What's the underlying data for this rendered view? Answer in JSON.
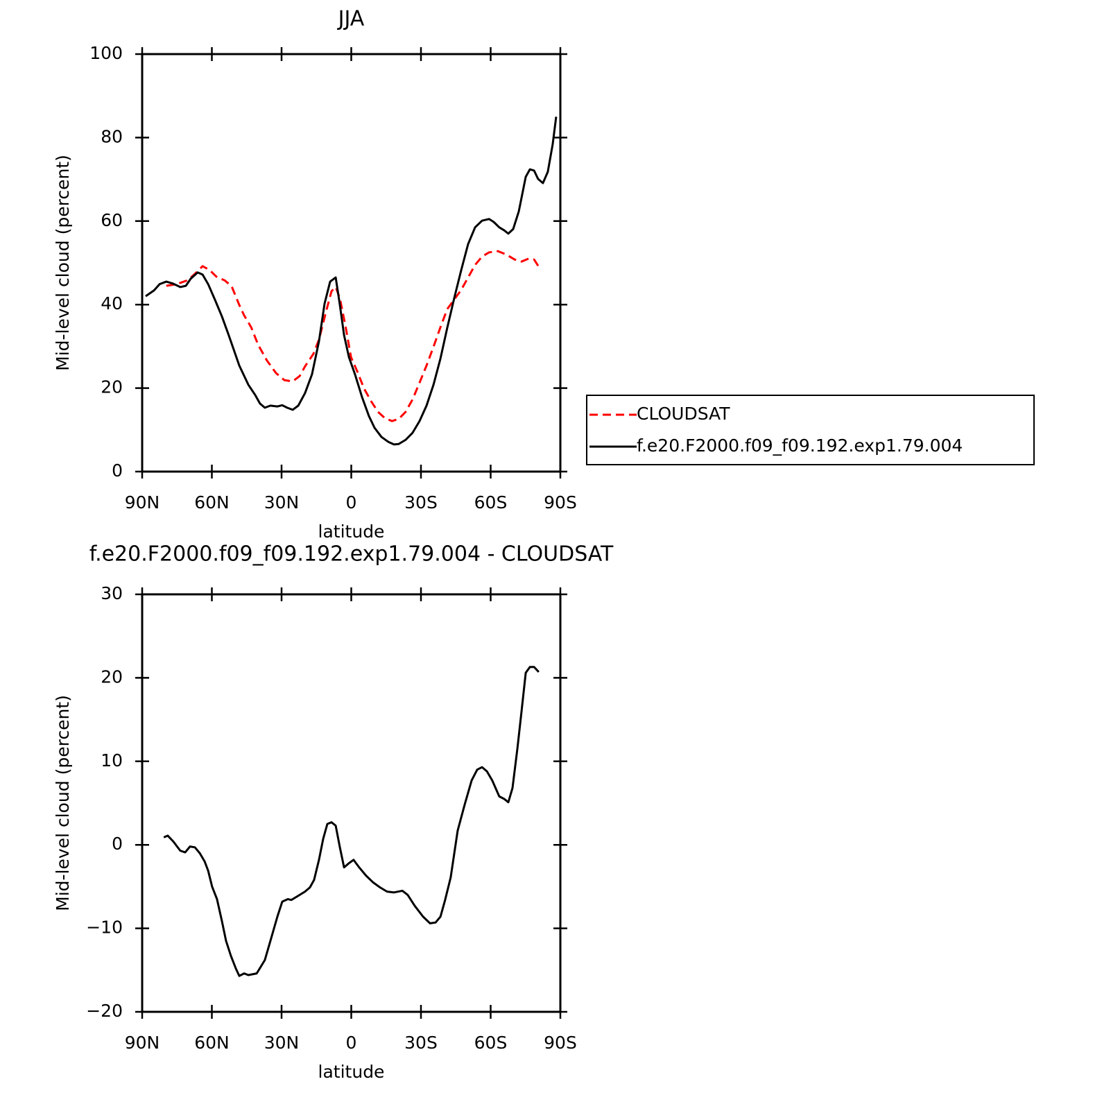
{
  "chart_data": [
    {
      "type": "line",
      "title": "JJA",
      "y_label": "Mid-level cloud (percent)",
      "x_label": "latitude",
      "xlim": [
        90,
        -90
      ],
      "xticks": [
        {
          "value": 90,
          "label": "90N"
        },
        {
          "value": 60,
          "label": "60N"
        },
        {
          "value": 30,
          "label": "30N"
        },
        0,
        {
          "value": -30,
          "label": "30S"
        },
        {
          "value": -60,
          "label": "60S"
        },
        {
          "value": -90,
          "label": "90S"
        }
      ],
      "ylim": [
        0,
        100
      ],
      "yticks": [
        0,
        20,
        40,
        60,
        80,
        100
      ],
      "legend": "right",
      "series": [
        {
          "name": "CLOUDSAT",
          "color": "#ff0000",
          "dash": true,
          "x": [
            79.6,
            75.1,
            70.6,
            67.6,
            64.0,
            61.0,
            58.1,
            54.5,
            51.5,
            48.2,
            46.1,
            43.1,
            40.1,
            36.3,
            32.4,
            28.8,
            25.2,
            22.2,
            19.9,
            16.3,
            13.9,
            10.9,
            8.5,
            6.7,
            4.9,
            2.5,
            0.1,
            -2.5,
            -5.5,
            -8.5,
            -11.5,
            -14.5,
            -17.5,
            -20.4,
            -23.4,
            -26.4,
            -29.4,
            -32.4,
            -35.4,
            -38.4,
            -41.3,
            -44.3,
            -47.3,
            -50.3,
            -53.3,
            -56.3,
            -59.3,
            -63.1,
            -66.7,
            -70.3,
            -73.3,
            -76.3,
            -78.7,
            -81.0
          ],
          "values": [
            44.5,
            44.9,
            45.8,
            47.2,
            49.2,
            48.3,
            46.7,
            45.8,
            44.4,
            39.9,
            37.4,
            34.6,
            30.4,
            26.6,
            23.6,
            21.9,
            21.6,
            22.9,
            25.2,
            28.2,
            31.6,
            38.2,
            43.2,
            44.2,
            41.5,
            34.9,
            27.4,
            24.1,
            19.9,
            16.9,
            14.3,
            12.8,
            12.1,
            12.6,
            14.3,
            17.3,
            21.3,
            25.4,
            29.9,
            34.6,
            38.9,
            41.2,
            43.5,
            46.5,
            49.5,
            51.5,
            52.5,
            52.8,
            52.0,
            50.8,
            50.3,
            51.0,
            50.8,
            48.8
          ]
        },
        {
          "name": "f.e20.F2000.f09_f09.192.exp1.79.004",
          "color": "#000000",
          "dash": false,
          "x": [
            88.5,
            84.9,
            82.5,
            79.6,
            76.6,
            73.6,
            71.2,
            69.1,
            66.1,
            64.0,
            61.6,
            58.7,
            55.7,
            52.7,
            48.2,
            44.3,
            41.3,
            39.3,
            37.2,
            34.8,
            31.8,
            29.7,
            27.6,
            25.2,
            22.8,
            19.9,
            16.9,
            13.9,
            11.5,
            9.1,
            6.7,
            4.9,
            3.1,
            1.0,
            -1.6,
            -4.6,
            -7.6,
            -10.0,
            -13.0,
            -16.0,
            -18.4,
            -20.4,
            -23.4,
            -26.4,
            -29.4,
            -32.4,
            -35.4,
            -38.4,
            -41.3,
            -44.3,
            -47.3,
            -50.3,
            -53.3,
            -56.3,
            -59.3,
            -61.3,
            -63.7,
            -65.8,
            -67.6,
            -69.7,
            -72.1,
            -73.3,
            -75.1,
            -76.9,
            -78.7,
            -80.4,
            -82.5,
            -84.6,
            -86.7,
            -88.2
          ],
          "values": [
            42.0,
            43.4,
            44.9,
            45.5,
            45.0,
            44.2,
            44.5,
            46.2,
            47.7,
            47.2,
            44.9,
            41.2,
            37.2,
            32.6,
            25.4,
            20.8,
            18.3,
            16.3,
            15.3,
            15.8,
            15.6,
            15.9,
            15.3,
            14.8,
            15.8,
            18.8,
            23.3,
            31.2,
            40.2,
            45.5,
            46.5,
            39.9,
            32.7,
            27.4,
            23.3,
            17.9,
            13.3,
            10.5,
            8.3,
            7.1,
            6.5,
            6.6,
            7.6,
            9.3,
            12.1,
            15.8,
            20.8,
            27.1,
            34.4,
            41.5,
            48.2,
            54.5,
            58.5,
            60.1,
            60.5,
            59.8,
            58.5,
            57.8,
            57.0,
            58.1,
            62.3,
            65.6,
            70.6,
            72.4,
            72.1,
            70.1,
            69.1,
            71.8,
            78.4,
            85.0
          ]
        }
      ]
    },
    {
      "type": "line",
      "title": "f.e20.F2000.f09_f09.192.exp1.79.004 - CLOUDSAT",
      "y_label": "Mid-level cloud (percent)",
      "x_label": "latitude",
      "xlim": [
        90,
        -90
      ],
      "xticks": [
        {
          "value": 90,
          "label": "90N"
        },
        {
          "value": 60,
          "label": "60N"
        },
        {
          "value": 30,
          "label": "30N"
        },
        0,
        {
          "value": -30,
          "label": "30S"
        },
        {
          "value": -60,
          "label": "60S"
        },
        {
          "value": -90,
          "label": "90S"
        }
      ],
      "ylim": [
        -20,
        30
      ],
      "yticks": [
        {
          "value": -20,
          "label": "−20"
        },
        {
          "value": -10,
          "label": "−10"
        },
        0,
        10,
        20,
        30
      ],
      "series": [
        {
          "color": "#000000",
          "dash": false,
          "x": [
            80.7,
            79.0,
            76.6,
            73.6,
            71.5,
            69.4,
            67.3,
            65.2,
            63.1,
            61.6,
            59.9,
            57.8,
            55.7,
            53.9,
            51.8,
            49.7,
            48.2,
            46.1,
            44.3,
            40.7,
            37.2,
            34.8,
            31.8,
            29.7,
            27.3,
            25.8,
            22.8,
            19.9,
            17.8,
            16.0,
            13.9,
            12.1,
            10.3,
            8.5,
            6.7,
            4.9,
            3.1,
            1.0,
            -1.0,
            -3.4,
            -6.4,
            -9.4,
            -12.4,
            -15.4,
            -18.4,
            -22.0,
            -24.3,
            -27.3,
            -30.9,
            -33.9,
            -36.3,
            -38.4,
            -40.4,
            -42.8,
            -45.8,
            -48.8,
            -51.8,
            -54.2,
            -56.3,
            -58.4,
            -60.7,
            -63.7,
            -65.8,
            -67.6,
            -69.4,
            -71.5,
            -73.3,
            -75.1,
            -76.9,
            -78.7,
            -80.7
          ],
          "values": [
            0.9,
            1.1,
            0.4,
            -0.7,
            -0.9,
            -0.2,
            -0.3,
            -1.0,
            -2.0,
            -3.1,
            -5.0,
            -6.5,
            -9.1,
            -11.5,
            -13.3,
            -14.8,
            -15.7,
            -15.4,
            -15.6,
            -15.4,
            -13.8,
            -11.5,
            -8.6,
            -6.8,
            -6.5,
            -6.6,
            -6.1,
            -5.6,
            -5.1,
            -4.2,
            -1.8,
            0.7,
            2.5,
            2.7,
            2.3,
            -0.3,
            -2.7,
            -2.2,
            -1.8,
            -2.7,
            -3.7,
            -4.5,
            -5.1,
            -5.6,
            -5.7,
            -5.5,
            -6.0,
            -7.3,
            -8.6,
            -9.4,
            -9.3,
            -8.6,
            -6.6,
            -3.9,
            1.7,
            4.8,
            7.7,
            9.0,
            9.3,
            8.8,
            7.7,
            5.8,
            5.5,
            5.1,
            6.8,
            11.5,
            16.0,
            20.6,
            21.3,
            21.3,
            20.7
          ]
        }
      ]
    }
  ]
}
